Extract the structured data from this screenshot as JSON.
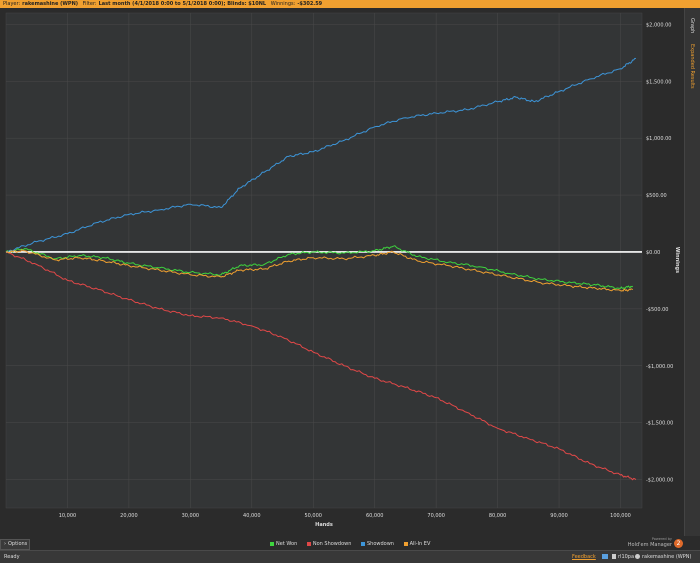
{
  "topbar": {
    "player_label": "Player:",
    "player_value": "rakemashine (WPN)",
    "filter_label": "Filter:",
    "filter_value": "Last month (4/1/2018 0:00 to 5/1/2018 0:00); Blinds: $10NL",
    "winnings_label": "Winnings:",
    "winnings_value": "-$302.59"
  },
  "tabs": {
    "graph": "Graph",
    "expanded": "Expanded Results"
  },
  "options_label": "Options",
  "status": {
    "ready": "Ready",
    "feedback": "Feedback",
    "user_count": "rl10pa",
    "player": "rakemashine (WPN)"
  },
  "brand": {
    "powered": "Powered by",
    "name": "Hold'em Manager",
    "badge": "2"
  },
  "colors": {
    "net_won": "#3ed43e",
    "non_showdown": "#e04848",
    "showdown": "#3d95d8",
    "allin_ev": "#f0a030",
    "accent": "#f0a030"
  },
  "chart_data": {
    "type": "line",
    "xlabel": "Hands",
    "ylabel": "Winnings",
    "xlim": [
      0,
      103500
    ],
    "ylim": [
      -2250,
      2100
    ],
    "x_ticks": [
      10000,
      20000,
      30000,
      40000,
      50000,
      60000,
      70000,
      80000,
      90000,
      100000
    ],
    "x_tick_labels": [
      "10,000",
      "20,000",
      "30,000",
      "40,000",
      "50,000",
      "60,000",
      "70,000",
      "80,000",
      "90,000",
      "100,000"
    ],
    "y_ticks": [
      2000,
      1500,
      1000,
      500,
      0,
      -500,
      -1000,
      -1500,
      -2000
    ],
    "y_tick_labels": [
      "$2,000.00",
      "$1,500.00",
      "$1,000.00",
      "$500.00",
      "$0.00",
      "-$500.00",
      "-$1,000.00",
      "-$1,500.00",
      "-$2,000.00"
    ],
    "grid": true,
    "legend_position": "bottom",
    "series": [
      {
        "name": "Net Won",
        "color": "#3ed43e",
        "x": [
          0,
          3000,
          8000,
          12000,
          16000,
          20000,
          25000,
          30000,
          35000,
          38000,
          42000,
          46000,
          50000,
          55000,
          60000,
          63000,
          67000,
          72000,
          77000,
          82000,
          87000,
          92000,
          96000,
          100000,
          102000
        ],
        "y": [
          0,
          30,
          -60,
          -30,
          -50,
          -100,
          -140,
          -180,
          -200,
          -120,
          -110,
          -20,
          0,
          -10,
          10,
          50,
          -40,
          -90,
          -130,
          -190,
          -240,
          -270,
          -290,
          -320,
          -300
        ]
      },
      {
        "name": "Non Showdown",
        "color": "#e04848",
        "x": [
          0,
          5000,
          10000,
          15000,
          20000,
          25000,
          30000,
          35000,
          40000,
          45000,
          50000,
          55000,
          60000,
          65000,
          70000,
          75000,
          80000,
          85000,
          90000,
          95000,
          100000,
          102500
        ],
        "y": [
          0,
          -110,
          -250,
          -330,
          -420,
          -500,
          -560,
          -580,
          -650,
          -750,
          -880,
          -1000,
          -1110,
          -1190,
          -1280,
          -1410,
          -1550,
          -1640,
          -1730,
          -1860,
          -1960,
          -2000
        ]
      },
      {
        "name": "Showdown",
        "color": "#3d95d8",
        "x": [
          0,
          5000,
          10000,
          15000,
          20000,
          25000,
          30000,
          35000,
          38000,
          42000,
          46000,
          50000,
          55000,
          60000,
          65000,
          70000,
          75000,
          80000,
          83000,
          86000,
          90000,
          95000,
          100000,
          102500
        ],
        "y": [
          0,
          90,
          160,
          260,
          330,
          370,
          420,
          390,
          560,
          700,
          840,
          880,
          980,
          1100,
          1180,
          1220,
          1250,
          1320,
          1360,
          1320,
          1410,
          1520,
          1610,
          1700
        ]
      },
      {
        "name": "All-In EV",
        "color": "#f0a030",
        "x": [
          0,
          3000,
          8000,
          12000,
          16000,
          20000,
          25000,
          30000,
          35000,
          38000,
          42000,
          46000,
          50000,
          55000,
          60000,
          63000,
          67000,
          72000,
          77000,
          82000,
          87000,
          92000,
          96000,
          100000,
          102000
        ],
        "y": [
          0,
          10,
          -70,
          -50,
          -80,
          -120,
          -160,
          -200,
          -220,
          -160,
          -150,
          -80,
          -50,
          -60,
          -30,
          0,
          -80,
          -120,
          -170,
          -220,
          -270,
          -300,
          -320,
          -340,
          -330
        ]
      }
    ]
  }
}
